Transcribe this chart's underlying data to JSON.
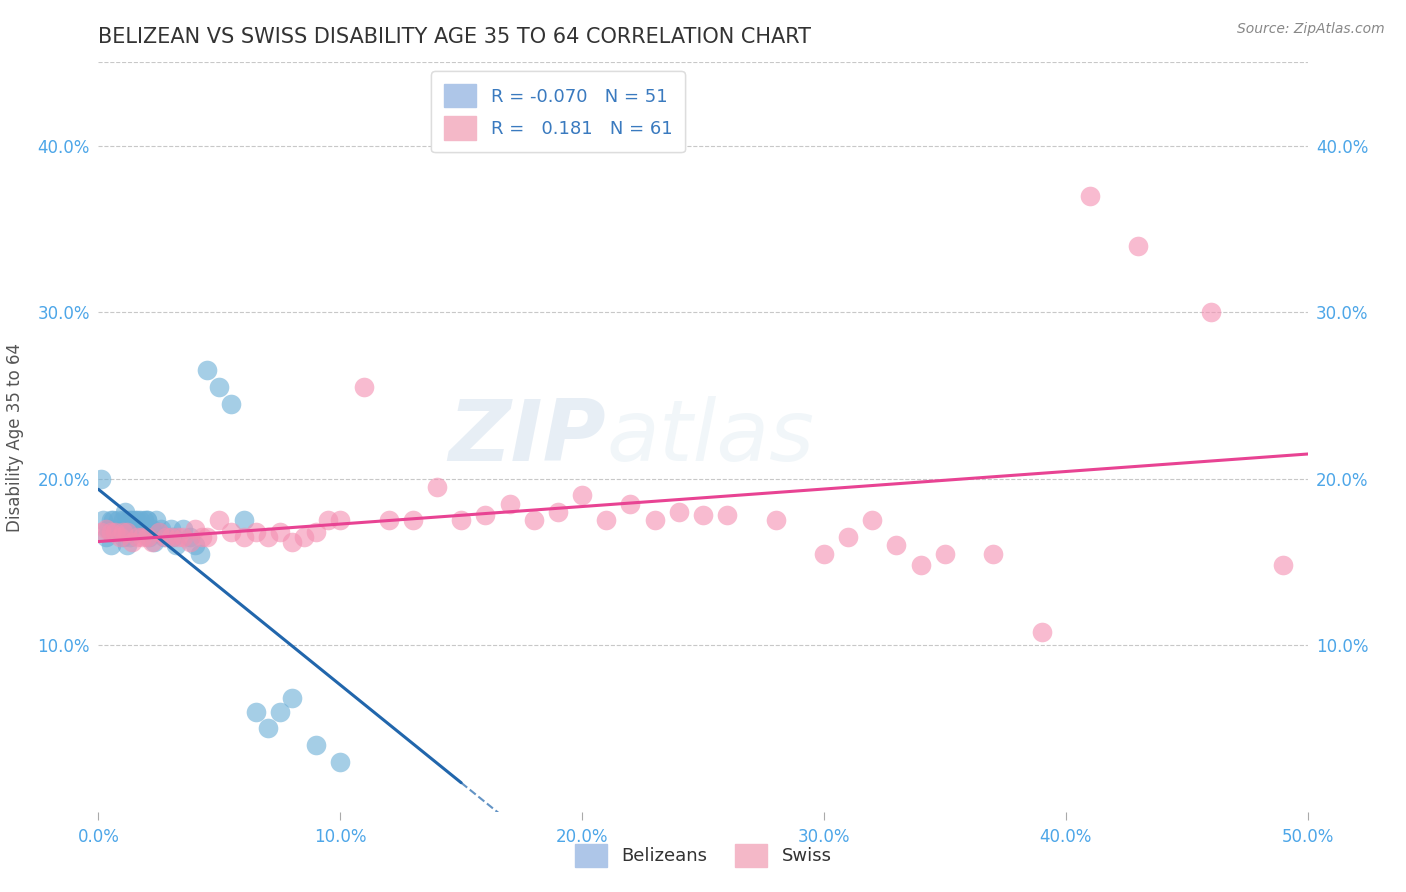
{
  "title": "BELIZEAN VS SWISS DISABILITY AGE 35 TO 64 CORRELATION CHART",
  "source_text": "Source: ZipAtlas.com",
  "ylabel": "Disability Age 35 to 64",
  "xlim": [
    0.0,
    0.5
  ],
  "ylim": [
    0.0,
    0.45
  ],
  "xticks": [
    0.0,
    0.1,
    0.2,
    0.3,
    0.4,
    0.5
  ],
  "xticklabels": [
    "0.0%",
    "10.0%",
    "20.0%",
    "30.0%",
    "40.0%",
    "50.0%"
  ],
  "yticks": [
    0.1,
    0.2,
    0.3,
    0.4
  ],
  "yticklabels": [
    "10.0%",
    "20.0%",
    "30.0%",
    "40.0%"
  ],
  "belizean_color": "#6aaed6",
  "swiss_color": "#f48fb1",
  "belizean_line_color": "#2166ac",
  "swiss_line_color": "#e84393",
  "belizean_alpha": 0.6,
  "swiss_alpha": 0.6,
  "watermark_zip": "ZIP",
  "watermark_atlas": "atlas",
  "background_color": "#ffffff",
  "grid_color": "#c8c8c8",
  "title_color": "#333333",
  "axis_tick_color": "#4da6e8",
  "r_belizean": -0.07,
  "r_swiss": 0.181,
  "n_belizean": 51,
  "n_swiss": 61,
  "belizean_x": [
    0.001,
    0.002,
    0.003,
    0.004,
    0.005,
    0.005,
    0.006,
    0.007,
    0.008,
    0.009,
    0.01,
    0.01,
    0.011,
    0.011,
    0.012,
    0.012,
    0.013,
    0.013,
    0.014,
    0.014,
    0.015,
    0.016,
    0.017,
    0.018,
    0.019,
    0.02,
    0.02,
    0.021,
    0.022,
    0.023,
    0.024,
    0.025,
    0.026,
    0.027,
    0.03,
    0.031,
    0.032,
    0.035,
    0.038,
    0.04,
    0.042,
    0.045,
    0.05,
    0.055,
    0.06,
    0.065,
    0.07,
    0.075,
    0.08,
    0.09,
    0.1
  ],
  "belizean_y": [
    0.2,
    0.175,
    0.165,
    0.17,
    0.175,
    0.16,
    0.175,
    0.17,
    0.175,
    0.168,
    0.175,
    0.165,
    0.18,
    0.17,
    0.175,
    0.16,
    0.175,
    0.165,
    0.175,
    0.168,
    0.175,
    0.175,
    0.175,
    0.17,
    0.175,
    0.175,
    0.175,
    0.165,
    0.17,
    0.162,
    0.175,
    0.168,
    0.17,
    0.165,
    0.17,
    0.165,
    0.16,
    0.17,
    0.165,
    0.16,
    0.155,
    0.265,
    0.255,
    0.245,
    0.175,
    0.06,
    0.05,
    0.06,
    0.068,
    0.04,
    0.03
  ],
  "swiss_x": [
    0.001,
    0.003,
    0.005,
    0.007,
    0.009,
    0.01,
    0.012,
    0.014,
    0.016,
    0.018,
    0.02,
    0.022,
    0.025,
    0.028,
    0.03,
    0.033,
    0.035,
    0.038,
    0.04,
    0.043,
    0.045,
    0.05,
    0.055,
    0.06,
    0.065,
    0.07,
    0.075,
    0.08,
    0.085,
    0.09,
    0.095,
    0.1,
    0.11,
    0.12,
    0.13,
    0.14,
    0.15,
    0.16,
    0.17,
    0.18,
    0.19,
    0.2,
    0.21,
    0.22,
    0.23,
    0.24,
    0.25,
    0.26,
    0.28,
    0.3,
    0.31,
    0.32,
    0.33,
    0.34,
    0.35,
    0.37,
    0.39,
    0.41,
    0.43,
    0.46,
    0.49
  ],
  "swiss_y": [
    0.168,
    0.17,
    0.168,
    0.168,
    0.165,
    0.168,
    0.168,
    0.162,
    0.165,
    0.165,
    0.165,
    0.162,
    0.168,
    0.165,
    0.165,
    0.165,
    0.165,
    0.162,
    0.17,
    0.165,
    0.165,
    0.175,
    0.168,
    0.165,
    0.168,
    0.165,
    0.168,
    0.162,
    0.165,
    0.168,
    0.175,
    0.175,
    0.255,
    0.175,
    0.175,
    0.195,
    0.175,
    0.178,
    0.185,
    0.175,
    0.18,
    0.19,
    0.175,
    0.185,
    0.175,
    0.18,
    0.178,
    0.178,
    0.175,
    0.155,
    0.165,
    0.175,
    0.16,
    0.148,
    0.155,
    0.155,
    0.108,
    0.37,
    0.34,
    0.3,
    0.148
  ]
}
